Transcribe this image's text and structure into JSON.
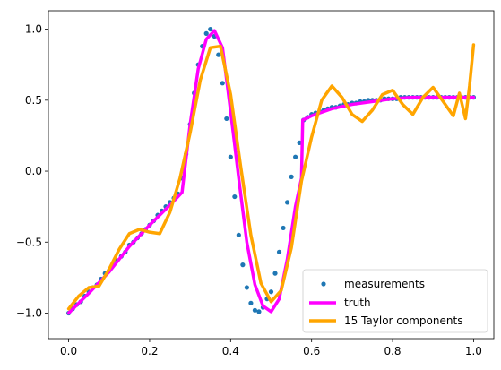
{
  "chart_data": {
    "type": "scatter",
    "title": "",
    "xlabel": "",
    "ylabel": "",
    "xlim": [
      -0.05,
      1.05
    ],
    "ylim": [
      -1.18,
      1.13
    ],
    "xticks": [
      0.0,
      0.2,
      0.4,
      0.6,
      0.8,
      1.0
    ],
    "xtick_labels": [
      "0.0",
      "0.2",
      "0.4",
      "0.6",
      "0.8",
      "1.0"
    ],
    "yticks": [
      -1.0,
      -0.5,
      0.0,
      0.5,
      1.0
    ],
    "ytick_labels": [
      "−1.0",
      "−0.5",
      "0.0",
      "0.5",
      "1.0"
    ],
    "grid": false,
    "legend_position": "lower-right",
    "series": [
      {
        "name": "measurements",
        "kind": "scatter",
        "color": "#1f77b4",
        "x": [
          0.0,
          0.01,
          0.02,
          0.03,
          0.04,
          0.05,
          0.06,
          0.07,
          0.08,
          0.09,
          0.1,
          0.11,
          0.12,
          0.13,
          0.14,
          0.15,
          0.16,
          0.17,
          0.18,
          0.19,
          0.2,
          0.21,
          0.22,
          0.23,
          0.24,
          0.25,
          0.26,
          0.27,
          0.28,
          0.29,
          0.3,
          0.31,
          0.32,
          0.33,
          0.34,
          0.35,
          0.36,
          0.37,
          0.38,
          0.39,
          0.4,
          0.41,
          0.42,
          0.43,
          0.44,
          0.45,
          0.46,
          0.47,
          0.48,
          0.49,
          0.5,
          0.51,
          0.52,
          0.53,
          0.54,
          0.55,
          0.56,
          0.57,
          0.58,
          0.59,
          0.6,
          0.61,
          0.62,
          0.63,
          0.64,
          0.65,
          0.66,
          0.67,
          0.68,
          0.69,
          0.7,
          0.71,
          0.72,
          0.73,
          0.74,
          0.75,
          0.76,
          0.77,
          0.78,
          0.79,
          0.8,
          0.81,
          0.82,
          0.83,
          0.84,
          0.85,
          0.86,
          0.87,
          0.88,
          0.89,
          0.9,
          0.91,
          0.92,
          0.93,
          0.94,
          0.95,
          0.96,
          0.97,
          0.98,
          0.99,
          1.0
        ],
        "y": [
          -1.0,
          -0.97,
          -0.94,
          -0.92,
          -0.88,
          -0.85,
          -0.82,
          -0.8,
          -0.76,
          -0.72,
          -0.7,
          -0.66,
          -0.63,
          -0.6,
          -0.57,
          -0.52,
          -0.5,
          -0.47,
          -0.44,
          -0.41,
          -0.38,
          -0.35,
          -0.31,
          -0.28,
          -0.25,
          -0.22,
          -0.19,
          -0.16,
          -0.05,
          0.12,
          0.33,
          0.55,
          0.75,
          0.88,
          0.97,
          1.0,
          0.95,
          0.82,
          0.62,
          0.37,
          0.1,
          -0.18,
          -0.45,
          -0.66,
          -0.82,
          -0.93,
          -0.98,
          -0.99,
          -0.96,
          -0.9,
          -0.85,
          -0.72,
          -0.57,
          -0.4,
          -0.22,
          -0.04,
          0.1,
          0.2,
          0.36,
          0.38,
          0.4,
          0.41,
          0.42,
          0.43,
          0.44,
          0.45,
          0.45,
          0.46,
          0.47,
          0.47,
          0.48,
          0.48,
          0.49,
          0.49,
          0.5,
          0.5,
          0.5,
          0.5,
          0.51,
          0.51,
          0.51,
          0.51,
          0.52,
          0.52,
          0.52,
          0.52,
          0.52,
          0.52,
          0.52,
          0.52,
          0.52,
          0.52,
          0.52,
          0.52,
          0.52,
          0.52,
          0.52,
          0.52,
          0.52,
          0.52,
          0.52
        ]
      },
      {
        "name": "truth",
        "kind": "line",
        "color": "#ff00ff",
        "x": [
          0.0,
          0.05,
          0.1,
          0.15,
          0.2,
          0.25,
          0.28,
          0.3,
          0.32,
          0.34,
          0.36,
          0.38,
          0.4,
          0.42,
          0.44,
          0.46,
          0.48,
          0.5,
          0.52,
          0.54,
          0.56,
          0.575,
          0.578,
          0.6,
          0.65,
          0.7,
          0.75,
          0.8,
          0.85,
          0.9,
          0.95,
          1.0
        ],
        "y": [
          -1.0,
          -0.86,
          -0.71,
          -0.53,
          -0.38,
          -0.24,
          -0.15,
          0.33,
          0.72,
          0.93,
          0.99,
          0.87,
          0.42,
          -0.05,
          -0.5,
          -0.8,
          -0.95,
          -0.99,
          -0.9,
          -0.62,
          -0.25,
          -0.05,
          0.36,
          0.39,
          0.44,
          0.47,
          0.49,
          0.51,
          0.52,
          0.52,
          0.52,
          0.52
        ]
      },
      {
        "name": "15 Taylor components",
        "kind": "line",
        "color": "#ffa500",
        "x": [
          0.0,
          0.025,
          0.05,
          0.075,
          0.1,
          0.125,
          0.15,
          0.175,
          0.2,
          0.225,
          0.25,
          0.275,
          0.3,
          0.325,
          0.35,
          0.375,
          0.4,
          0.425,
          0.45,
          0.475,
          0.5,
          0.525,
          0.55,
          0.575,
          0.6,
          0.625,
          0.65,
          0.675,
          0.7,
          0.725,
          0.75,
          0.775,
          0.8,
          0.825,
          0.85,
          0.875,
          0.9,
          0.925,
          0.95,
          0.965,
          0.98,
          0.99,
          1.0
        ],
        "y": [
          -0.97,
          -0.88,
          -0.82,
          -0.81,
          -0.69,
          -0.55,
          -0.44,
          -0.41,
          -0.43,
          -0.44,
          -0.29,
          -0.05,
          0.27,
          0.64,
          0.87,
          0.88,
          0.54,
          0.03,
          -0.45,
          -0.79,
          -0.92,
          -0.84,
          -0.54,
          -0.07,
          0.24,
          0.5,
          0.6,
          0.52,
          0.4,
          0.35,
          0.43,
          0.54,
          0.57,
          0.47,
          0.4,
          0.52,
          0.59,
          0.49,
          0.39,
          0.55,
          0.37,
          0.6,
          0.89
        ]
      }
    ]
  }
}
